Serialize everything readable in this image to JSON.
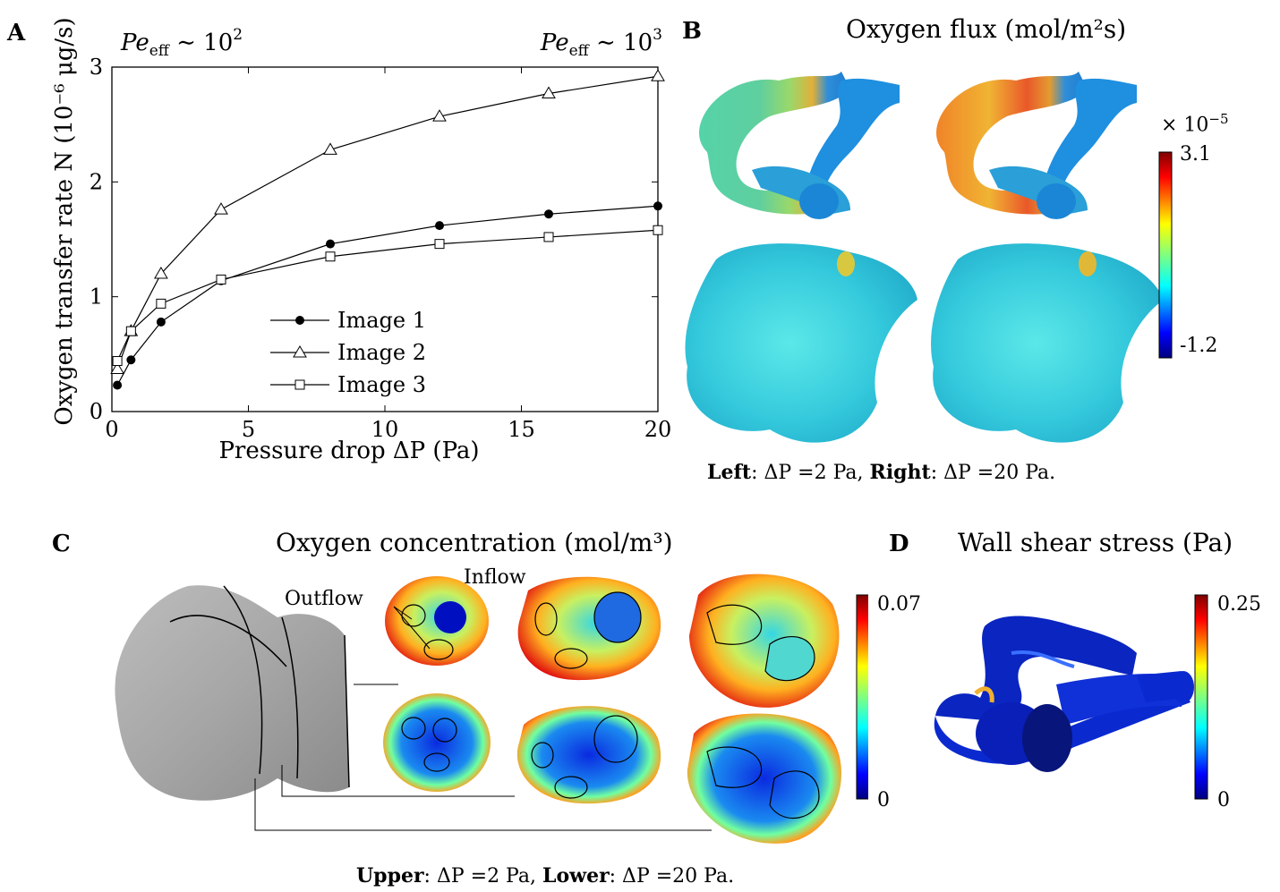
{
  "panels": {
    "a": {
      "letter": "A"
    },
    "b": {
      "letter": "B",
      "title": "Oxygen flux (mol/m²s)",
      "colorbar": {
        "multiplier": "× 10",
        "exponent": "−5",
        "max": "3.1",
        "min": "-1.2"
      },
      "caption": {
        "left_label": "Left",
        "left_text": ": ΔP =2 Pa, ",
        "right_label": "Right",
        "right_text": ": ΔP =20 Pa."
      }
    },
    "c": {
      "letter": "C",
      "title": "Oxygen concentration (mol/m³)",
      "labels": {
        "inflow": "Inflow",
        "outflow": "Outflow"
      },
      "colorbar": {
        "max": "0.07",
        "min": "0"
      },
      "caption": {
        "upper_label": "Upper",
        "upper_text": ": ΔP =2 Pa, ",
        "lower_label": "Lower",
        "lower_text": ": ΔP =20 Pa."
      }
    },
    "d": {
      "letter": "D",
      "title": "Wall shear stress (Pa)",
      "colorbar": {
        "max": "0.25",
        "min": "0"
      }
    }
  },
  "colors": {
    "jet": [
      "#00007f",
      "#0000ff",
      "#007fff",
      "#00ffff",
      "#7fff7f",
      "#ffff00",
      "#ff7f00",
      "#ff0000",
      "#7f0000"
    ]
  },
  "chart_data": {
    "type": "line",
    "xlabel": "Pressure drop ΔP (Pa)",
    "ylabel": "Oxygen transfer rate N (10⁻⁶ μg/s)",
    "xlim": [
      0,
      20
    ],
    "ylim": [
      0,
      3
    ],
    "xticks": [
      0,
      5,
      10,
      15,
      20
    ],
    "yticks": [
      0,
      1,
      2,
      3
    ],
    "annotations": {
      "left_base": "Pe",
      "left_sub": "eff",
      "left_rel": " ∼ 10",
      "left_exp": "2",
      "right_base": "Pe",
      "right_sub": "eff",
      "right_rel": " ∼ 10",
      "right_exp": "3"
    },
    "legend_position": "center-bottom",
    "series": [
      {
        "name": "Image 1",
        "marker": "filled-circle",
        "x": [
          0.2,
          0.7,
          1.8,
          4,
          8,
          12,
          16,
          20
        ],
        "y": [
          0.23,
          0.45,
          0.78,
          1.14,
          1.46,
          1.62,
          1.72,
          1.79
        ]
      },
      {
        "name": "Image 2",
        "marker": "open-triangle",
        "x": [
          0.2,
          0.7,
          1.8,
          4,
          8,
          12,
          16,
          20
        ],
        "y": [
          0.37,
          0.7,
          1.2,
          1.76,
          2.28,
          2.57,
          2.77,
          2.92
        ]
      },
      {
        "name": "Image 3",
        "marker": "open-square",
        "x": [
          0.2,
          0.7,
          1.8,
          4,
          8,
          12,
          16,
          20
        ],
        "y": [
          0.44,
          0.7,
          0.94,
          1.15,
          1.35,
          1.46,
          1.52,
          1.58
        ]
      }
    ]
  }
}
